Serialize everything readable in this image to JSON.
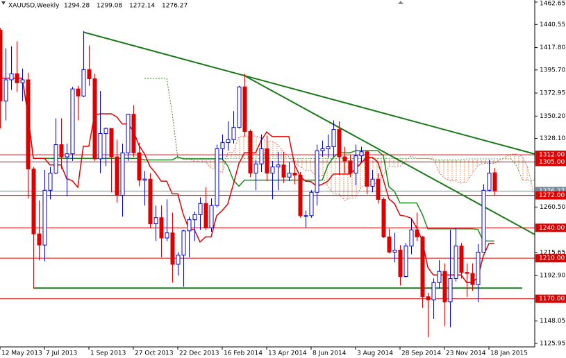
{
  "chart_data": {
    "type": "candlestick",
    "symbol": "XAUUSD,Weekly",
    "categories": [
      "12 May 2013",
      null,
      null,
      null,
      null,
      null,
      null,
      null,
      "7 Jul 2013",
      null,
      null,
      null,
      null,
      null,
      null,
      null,
      "1 Sep 2013",
      null,
      null,
      null,
      null,
      null,
      null,
      null,
      "27 Oct 2013",
      null,
      null,
      null,
      null,
      null,
      null,
      null,
      "22 Dec 2013",
      null,
      null,
      null,
      null,
      null,
      null,
      null,
      "16 Feb 2014",
      null,
      null,
      null,
      null,
      null,
      null,
      null,
      "13 Apr 2014",
      null,
      null,
      null,
      null,
      null,
      null,
      null,
      "8 Jun 2014",
      null,
      null,
      null,
      null,
      null,
      null,
      null,
      "3 Aug 2014",
      null,
      null,
      null,
      null,
      null,
      null,
      null,
      "28 Sep 2014",
      null,
      null,
      null,
      null,
      null,
      null,
      null,
      "23 Nov 2014",
      null,
      null,
      null,
      null,
      null,
      null,
      null,
      "18 Jan 2015",
      null
    ],
    "open": [
      1435,
      1365,
      1386,
      1392,
      1383,
      1386,
      1298,
      1234,
      1223,
      1277,
      1294,
      1322,
      1310,
      1313,
      1377,
      1370,
      1396,
      1387,
      1308,
      1333,
      1338,
      1310,
      1272,
      1314,
      1352,
      1314,
      1287,
      1288,
      1244,
      1250,
      1230,
      1235,
      1204,
      1213,
      1237,
      1248,
      1253,
      1264,
      1240,
      1262,
      1318,
      1324,
      1327,
      1339,
      1379,
      1335,
      1294,
      1303,
      1318,
      1294,
      1300,
      1302,
      1290,
      1294,
      1292,
      1252,
      1252,
      1275,
      1316,
      1318,
      1320,
      1337,
      1310,
      1306,
      1294,
      1311,
      1315,
      1281,
      1288,
      1268,
      1231,
      1216,
      1218,
      1192,
      1222,
      1238,
      1231,
      1172,
      1169,
      1186,
      1197,
      1167,
      1190,
      1222,
      1196,
      1195,
      1184,
      1216,
      1277,
      1294.28
    ],
    "high": [
      1437,
      1417,
      1419,
      1424,
      1397,
      1393,
      1300,
      1267,
      1297,
      1300,
      1348,
      1348,
      1323,
      1379,
      1380,
      1434,
      1420,
      1392,
      1375,
      1339,
      1338,
      1327,
      1323,
      1352,
      1361,
      1324,
      1296,
      1294,
      1262,
      1262,
      1268,
      1255,
      1216,
      1238,
      1251,
      1256,
      1270,
      1280,
      1269,
      1322,
      1332,
      1345,
      1355,
      1380,
      1392,
      1337,
      1307,
      1332,
      1331,
      1306,
      1315,
      1315,
      1305,
      1306,
      1295,
      1257,
      1277,
      1322,
      1326,
      1332,
      1346,
      1345,
      1320,
      1312,
      1322,
      1320,
      1316,
      1297,
      1294,
      1270,
      1239,
      1235,
      1223,
      1225,
      1249,
      1255,
      1232,
      1176,
      1190,
      1208,
      1205,
      1238,
      1240,
      1225,
      1205,
      1205,
      1224,
      1283,
      1307,
      1299.08
    ],
    "low": [
      1338,
      1346,
      1376,
      1374,
      1365,
      1269,
      1180,
      1208,
      1207,
      1268,
      1293,
      1298,
      1271,
      1306,
      1346,
      1369,
      1380,
      1306,
      1294,
      1301,
      1275,
      1265,
      1251,
      1306,
      1310,
      1281,
      1262,
      1240,
      1227,
      1211,
      1227,
      1186,
      1193,
      1182,
      1211,
      1227,
      1238,
      1238,
      1236,
      1260,
      1307,
      1316,
      1323,
      1338,
      1330,
      1290,
      1277,
      1295,
      1286,
      1268,
      1277,
      1284,
      1286,
      1283,
      1250,
      1240,
      1250,
      1262,
      1310,
      1309,
      1310,
      1292,
      1294,
      1290,
      1282,
      1305,
      1273,
      1275,
      1264,
      1230,
      1215,
      1206,
      1183,
      1191,
      1214,
      1227,
      1161,
      1132,
      1150,
      1180,
      1143,
      1142,
      1187,
      1190,
      1172,
      1178,
      1167,
      1216,
      1276,
      1272.14
    ],
    "close": [
      1365,
      1386,
      1392,
      1383,
      1386,
      1298,
      1234,
      1223,
      1277,
      1294,
      1322,
      1310,
      1313,
      1377,
      1370,
      1396,
      1387,
      1308,
      1333,
      1338,
      1310,
      1272,
      1314,
      1352,
      1314,
      1287,
      1288,
      1244,
      1250,
      1230,
      1235,
      1204,
      1213,
      1237,
      1248,
      1253,
      1264,
      1240,
      1262,
      1318,
      1324,
      1327,
      1339,
      1379,
      1335,
      1294,
      1303,
      1318,
      1294,
      1300,
      1302,
      1290,
      1294,
      1292,
      1252,
      1252,
      1275,
      1316,
      1318,
      1320,
      1337,
      1310,
      1306,
      1294,
      1311,
      1315,
      1281,
      1288,
      1268,
      1231,
      1216,
      1218,
      1192,
      1222,
      1238,
      1231,
      1172,
      1169,
      1186,
      1197,
      1167,
      1190,
      1222,
      1196,
      1195,
      1184,
      1216,
      1277,
      1294,
      1276.27
    ],
    "up_color": "#0000cc",
    "down_color": "#dd0000",
    "ylim": [
      1125.95,
      1462.65
    ],
    "yticks": [
      1462.65,
      1440.55,
      {
        "value": 1417.8,
        "label": "1417.80"
      },
      {
        "value": 1395.7,
        "label": "1395.70"
      },
      1372.95,
      {
        "value": 1350.2,
        "label": "1350.20"
      },
      {
        "value": 1328.1,
        "label": "1328.10"
      },
      {
        "value": 1260.5,
        "label": "1260.50"
      },
      1215.65,
      {
        "value": 1192.9,
        "label": "1192.90"
      },
      1148.05,
      1125.95
    ],
    "levels": [
      {
        "value": 1312,
        "label": "1312.00"
      },
      {
        "value": 1305,
        "label": "1305.00"
      },
      {
        "value": 1272,
        "label": "1272.00"
      },
      {
        "value": 1240,
        "label": "1240.00"
      },
      {
        "value": 1210,
        "label": "1210.00"
      },
      {
        "value": 1170,
        "label": "1170.00"
      }
    ],
    "level_color": "#dd0000",
    "trend_lines": [
      {
        "x": [
          15,
          96.25
        ],
        "y": [
          1433,
          1312.8
        ]
      },
      {
        "x": [
          43.75,
          96.25
        ],
        "y": [
          1390.8,
          1233.4
        ]
      },
      {
        "x": [
          6,
          94
        ],
        "y": [
          1180.5,
          1180.5
        ]
      }
    ],
    "trend_color": "#1a7a1a"
  }
}
